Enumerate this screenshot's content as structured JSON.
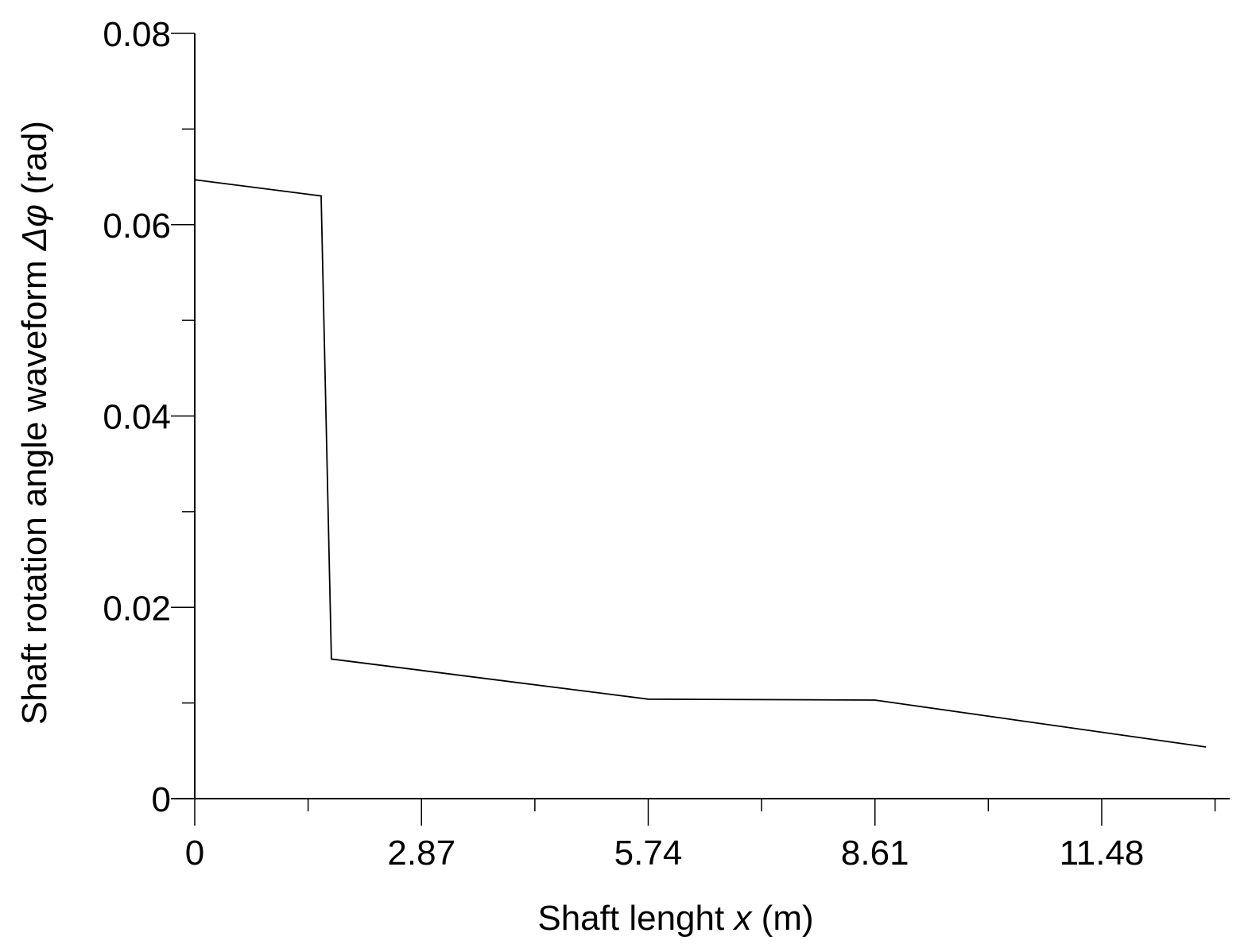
{
  "chart_data": {
    "type": "line",
    "xlabel": {
      "prefix": "Shaft lenght ",
      "symbol": "x",
      "suffix": " (m)"
    },
    "ylabel": {
      "prefix": "Shaft rotation angle waveform ",
      "symbol": "Δφ",
      "suffix": " (rad)"
    },
    "xlim": [
      0,
      13.1
    ],
    "ylim": [
      0,
      0.08
    ],
    "x_ticks_major": [
      0,
      2.87,
      5.74,
      8.61,
      11.48
    ],
    "x_tick_labels": [
      "0",
      "2.87",
      "5.74",
      "8.61",
      "11.48"
    ],
    "x_ticks_minor": [
      1.435,
      4.305,
      7.175,
      10.045,
      12.915
    ],
    "y_ticks_major": [
      0,
      0.02,
      0.04,
      0.06,
      0.08
    ],
    "y_tick_labels": [
      "0",
      "0.02",
      "0.04",
      "0.06",
      "0.08"
    ],
    "y_ticks_minor": [
      0.01,
      0.03,
      0.05,
      0.07
    ],
    "grid": false,
    "series": [
      {
        "x": [
          0,
          1.6,
          1.73,
          5.74,
          8.61,
          12.8
        ],
        "y": [
          0.0647,
          0.063,
          0.0146,
          0.0104,
          0.0103,
          0.0054
        ]
      }
    ]
  }
}
